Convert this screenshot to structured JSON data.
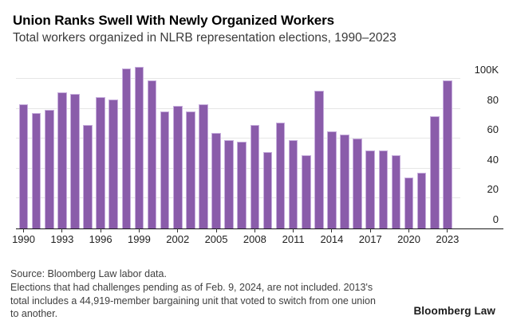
{
  "header": {
    "title": "Union Ranks Swell With Newly Organized Workers",
    "subtitle": "Total workers organized in NLRB representation elections, 1990–2023"
  },
  "chart_data": {
    "type": "bar",
    "title": "Union Ranks Swell With Newly Organized Workers",
    "subtitle": "Total workers organized in NLRB representation elections, 1990–2023",
    "unit": "thousands of workers",
    "categories": [
      1990,
      1991,
      1992,
      1993,
      1994,
      1995,
      1996,
      1997,
      1998,
      1999,
      2000,
      2001,
      2002,
      2003,
      2004,
      2005,
      2006,
      2007,
      2008,
      2009,
      2010,
      2011,
      2012,
      2013,
      2014,
      2015,
      2016,
      2017,
      2018,
      2019,
      2020,
      2021,
      2022,
      2023
    ],
    "values": [
      83,
      77,
      79,
      91,
      90,
      69,
      88,
      86,
      107,
      108,
      99,
      78,
      82,
      78,
      83,
      64,
      59,
      58,
      69,
      51,
      71,
      59,
      49,
      92,
      65,
      63,
      60,
      52,
      52,
      49,
      34,
      37,
      75,
      99
    ],
    "y_ticks": [
      {
        "label": "0",
        "value": 0
      },
      {
        "label": "20",
        "value": 20
      },
      {
        "label": "40",
        "value": 40
      },
      {
        "label": "60",
        "value": 60
      },
      {
        "label": "80",
        "value": 80
      },
      {
        "label": "100K",
        "value": 100
      }
    ],
    "x_tick_labels": [
      "1990",
      "1993",
      "1996",
      "1999",
      "2002",
      "2005",
      "2008",
      "2011",
      "2014",
      "2017",
      "2020",
      "2023"
    ],
    "ylim": [
      0,
      110
    ],
    "grid": true,
    "legend": "none",
    "bar_color": "#8a5caa",
    "bar_edge_color": "#c7aedd",
    "gridline_color": "#e6e6e6"
  },
  "footer": {
    "lines": [
      "Source: Bloomberg Law labor data.",
      "Elections that had challenges pending as of Feb. 9, 2024, are not included. 2013's",
      "total includes a 44,919-member bargaining unit that voted to switch from one union",
      "to another."
    ],
    "brand": "Bloomberg Law"
  }
}
